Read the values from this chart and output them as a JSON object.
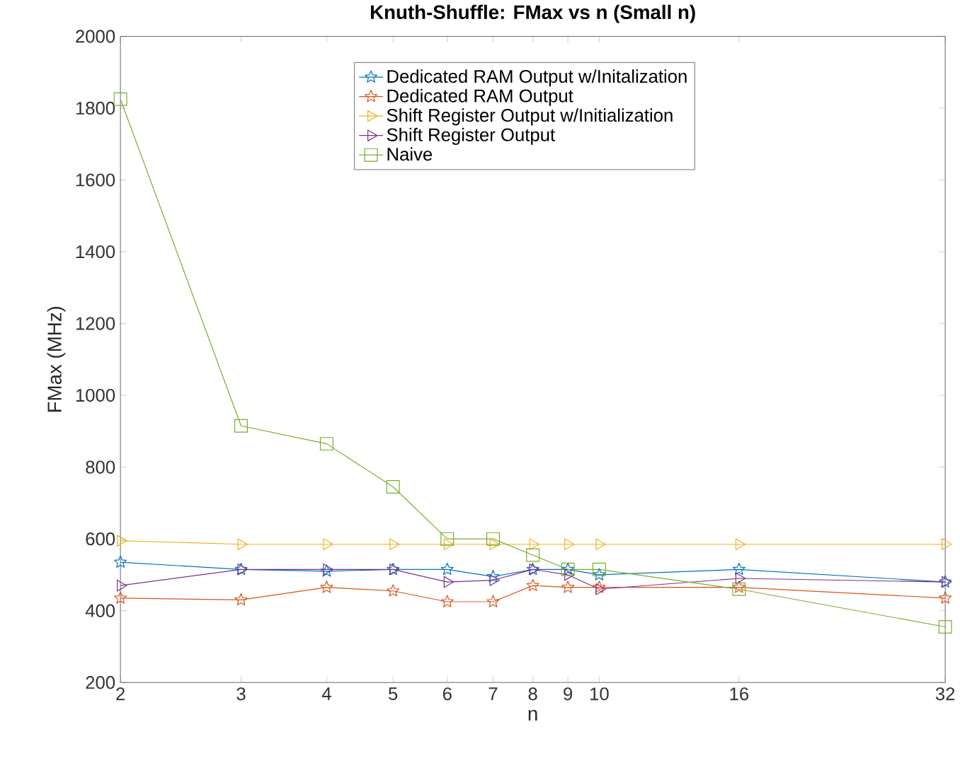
{
  "chart_data": {
    "type": "line",
    "title": "Knuth-Shuffle: FMax vs n (Small n)",
    "xlabel": "n",
    "ylabel": "FMax (MHz)",
    "x": [
      2,
      3,
      4,
      5,
      6,
      7,
      8,
      9,
      10,
      16,
      32
    ],
    "series": [
      {
        "name": "Dedicated RAM Output w/Initalization",
        "color": "#0072bd",
        "marker": "star",
        "values": [
          535,
          515,
          510,
          515,
          515,
          495,
          515,
          515,
          500,
          515,
          480
        ]
      },
      {
        "name": "Dedicated RAM Output",
        "color": "#d95319",
        "marker": "star",
        "values": [
          435,
          430,
          465,
          455,
          425,
          425,
          470,
          465,
          465,
          465,
          435
        ]
      },
      {
        "name": "Shift Register Output w/Initialization",
        "color": "#edb120",
        "marker": "triangle",
        "values": [
          595,
          585,
          585,
          585,
          585,
          585,
          585,
          585,
          585,
          585,
          585
        ]
      },
      {
        "name": "Shift Register Output",
        "color": "#7e2f8e",
        "marker": "triangle",
        "values": [
          470,
          515,
          515,
          515,
          480,
          485,
          515,
          500,
          460,
          490,
          480
        ]
      },
      {
        "name": "Naive",
        "color": "#77ac30",
        "marker": "square",
        "values": [
          1825,
          915,
          865,
          745,
          600,
          600,
          555,
          515,
          515,
          460,
          355
        ]
      }
    ],
    "log": "x",
    "xlim": [
      2,
      32
    ],
    "ylim": [
      200,
      2000
    ],
    "xticks": [
      2,
      3,
      4,
      5,
      6,
      7,
      8,
      9,
      10,
      16,
      32
    ],
    "yticks": [
      200,
      400,
      600,
      800,
      1000,
      1200,
      1400,
      1600,
      1800,
      2000
    ],
    "grid": false,
    "legend": "top",
    "line_style": "solid"
  }
}
